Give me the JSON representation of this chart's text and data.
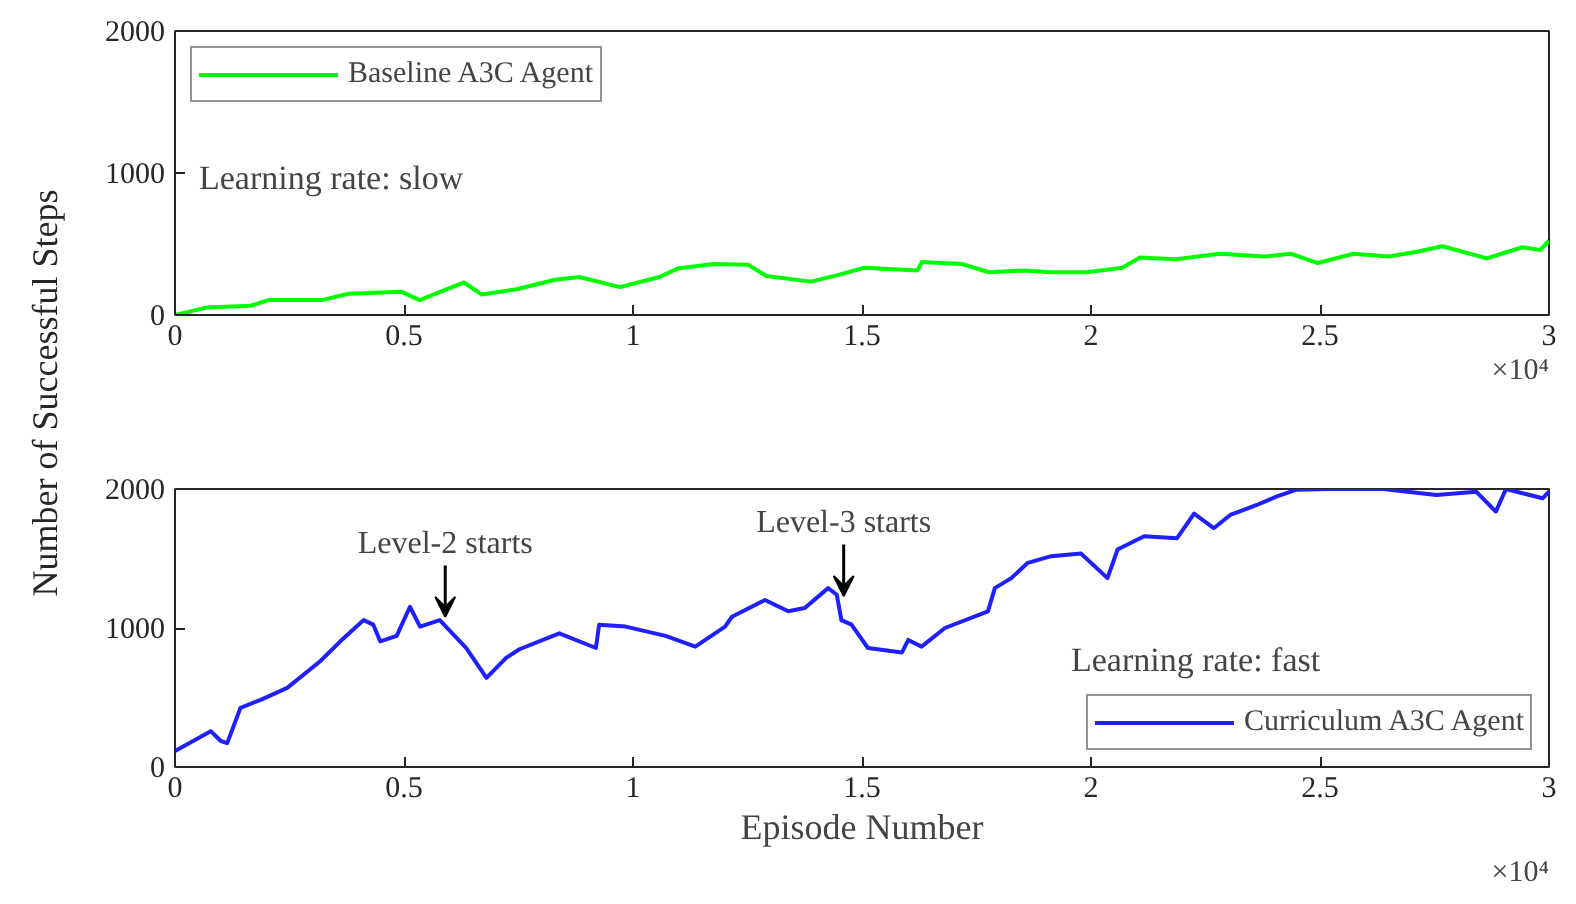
{
  "chart_data": [
    {
      "type": "line",
      "ylabel": "Number of Successful Steps",
      "xlim": [
        0,
        3
      ],
      "ylim": [
        0,
        2000
      ],
      "xticks": [
        0,
        0.5,
        1,
        1.5,
        2,
        2.5,
        3
      ],
      "yticks": [
        0,
        1000,
        2000
      ],
      "grid": false,
      "legend": "top left",
      "annotations": [
        "Learning rate: slow",
        "×10⁴"
      ],
      "series": [
        {
          "name": "Baseline A3C Agent",
          "color": "#00ff00",
          "x": [
            0,
            0.068,
            0.165,
            0.204,
            0.32,
            0.379,
            0.495,
            0.534,
            0.631,
            0.67,
            0.748,
            0.83,
            0.883,
            0.971,
            1.058,
            1.097,
            1.175,
            1.252,
            1.291,
            1.388,
            1.447,
            1.505,
            1.621,
            1.631,
            1.718,
            1.777,
            1.854,
            1.913,
            1.99,
            2.068,
            2.107,
            2.184,
            2.281,
            2.378,
            2.437,
            2.495,
            2.573,
            2.65,
            2.709,
            2.767,
            2.864,
            2.942,
            2.981,
            3.0
          ],
          "values": [
            0,
            52,
            65,
            105,
            105,
            150,
            163,
            105,
            229,
            144,
            183,
            248,
            268,
            196,
            268,
            327,
            359,
            353,
            275,
            235,
            281,
            333,
            314,
            373,
            359,
            301,
            314,
            301,
            301,
            333,
            405,
            392,
            431,
            412,
            431,
            366,
            431,
            412,
            444,
            484,
            399,
            477,
            458,
            523
          ]
        }
      ]
    },
    {
      "type": "line",
      "xlabel": "Episode Number",
      "xlim": [
        0,
        3
      ],
      "ylim": [
        0,
        2000
      ],
      "xticks": [
        0,
        0.5,
        1,
        1.5,
        2,
        2.5,
        3
      ],
      "yticks": [
        0,
        1000,
        2000
      ],
      "grid": false,
      "legend": "bottom right",
      "annotations": [
        "Learning rate: fast",
        "×10⁴",
        {
          "text": "Level-2 starts",
          "x": 0.59,
          "y": 1080
        },
        {
          "text": "Level-3 starts",
          "x": 1.46,
          "y": 1230
        }
      ],
      "series": [
        {
          "name": "Curriculum A3C Agent",
          "color": "#1f1fff",
          "x": [
            0,
            0.078,
            0.1,
            0.114,
            0.143,
            0.187,
            0.245,
            0.317,
            0.361,
            0.412,
            0.433,
            0.448,
            0.484,
            0.513,
            0.535,
            0.578,
            0.636,
            0.68,
            0.723,
            0.752,
            0.839,
            0.919,
            0.926,
            0.984,
            1.071,
            1.136,
            1.201,
            1.216,
            1.288,
            1.339,
            1.375,
            1.426,
            1.445,
            1.455,
            1.477,
            1.513,
            1.587,
            1.601,
            1.63,
            1.681,
            1.775,
            1.79,
            1.826,
            1.862,
            1.913,
            1.978,
            2.036,
            2.058,
            2.116,
            2.188,
            2.225,
            2.268,
            2.304,
            2.362,
            2.406,
            2.449,
            2.522,
            2.638,
            2.754,
            2.841,
            2.884,
            2.906,
            2.986,
            3.0
          ],
          "values": [
            115,
            258,
            187,
            172,
            426,
            483,
            569,
            761,
            904,
            1057,
            1024,
            904,
            943,
            1153,
            1010,
            1057,
            856,
            641,
            785,
            847,
            962,
            856,
            1024,
            1010,
            943,
            866,
            1010,
            1081,
            1201,
            1120,
            1144,
            1287,
            1239,
            1057,
            1024,
            856,
            823,
            914,
            866,
            1000,
            1120,
            1287,
            1359,
            1469,
            1517,
            1536,
            1359,
            1565,
            1660,
            1646,
            1823,
            1718,
            1813,
            1885,
            1947,
            1995,
            2000,
            2000,
            1957,
            1981,
            1837,
            2000,
            1933,
            1981
          ]
        }
      ]
    }
  ]
}
